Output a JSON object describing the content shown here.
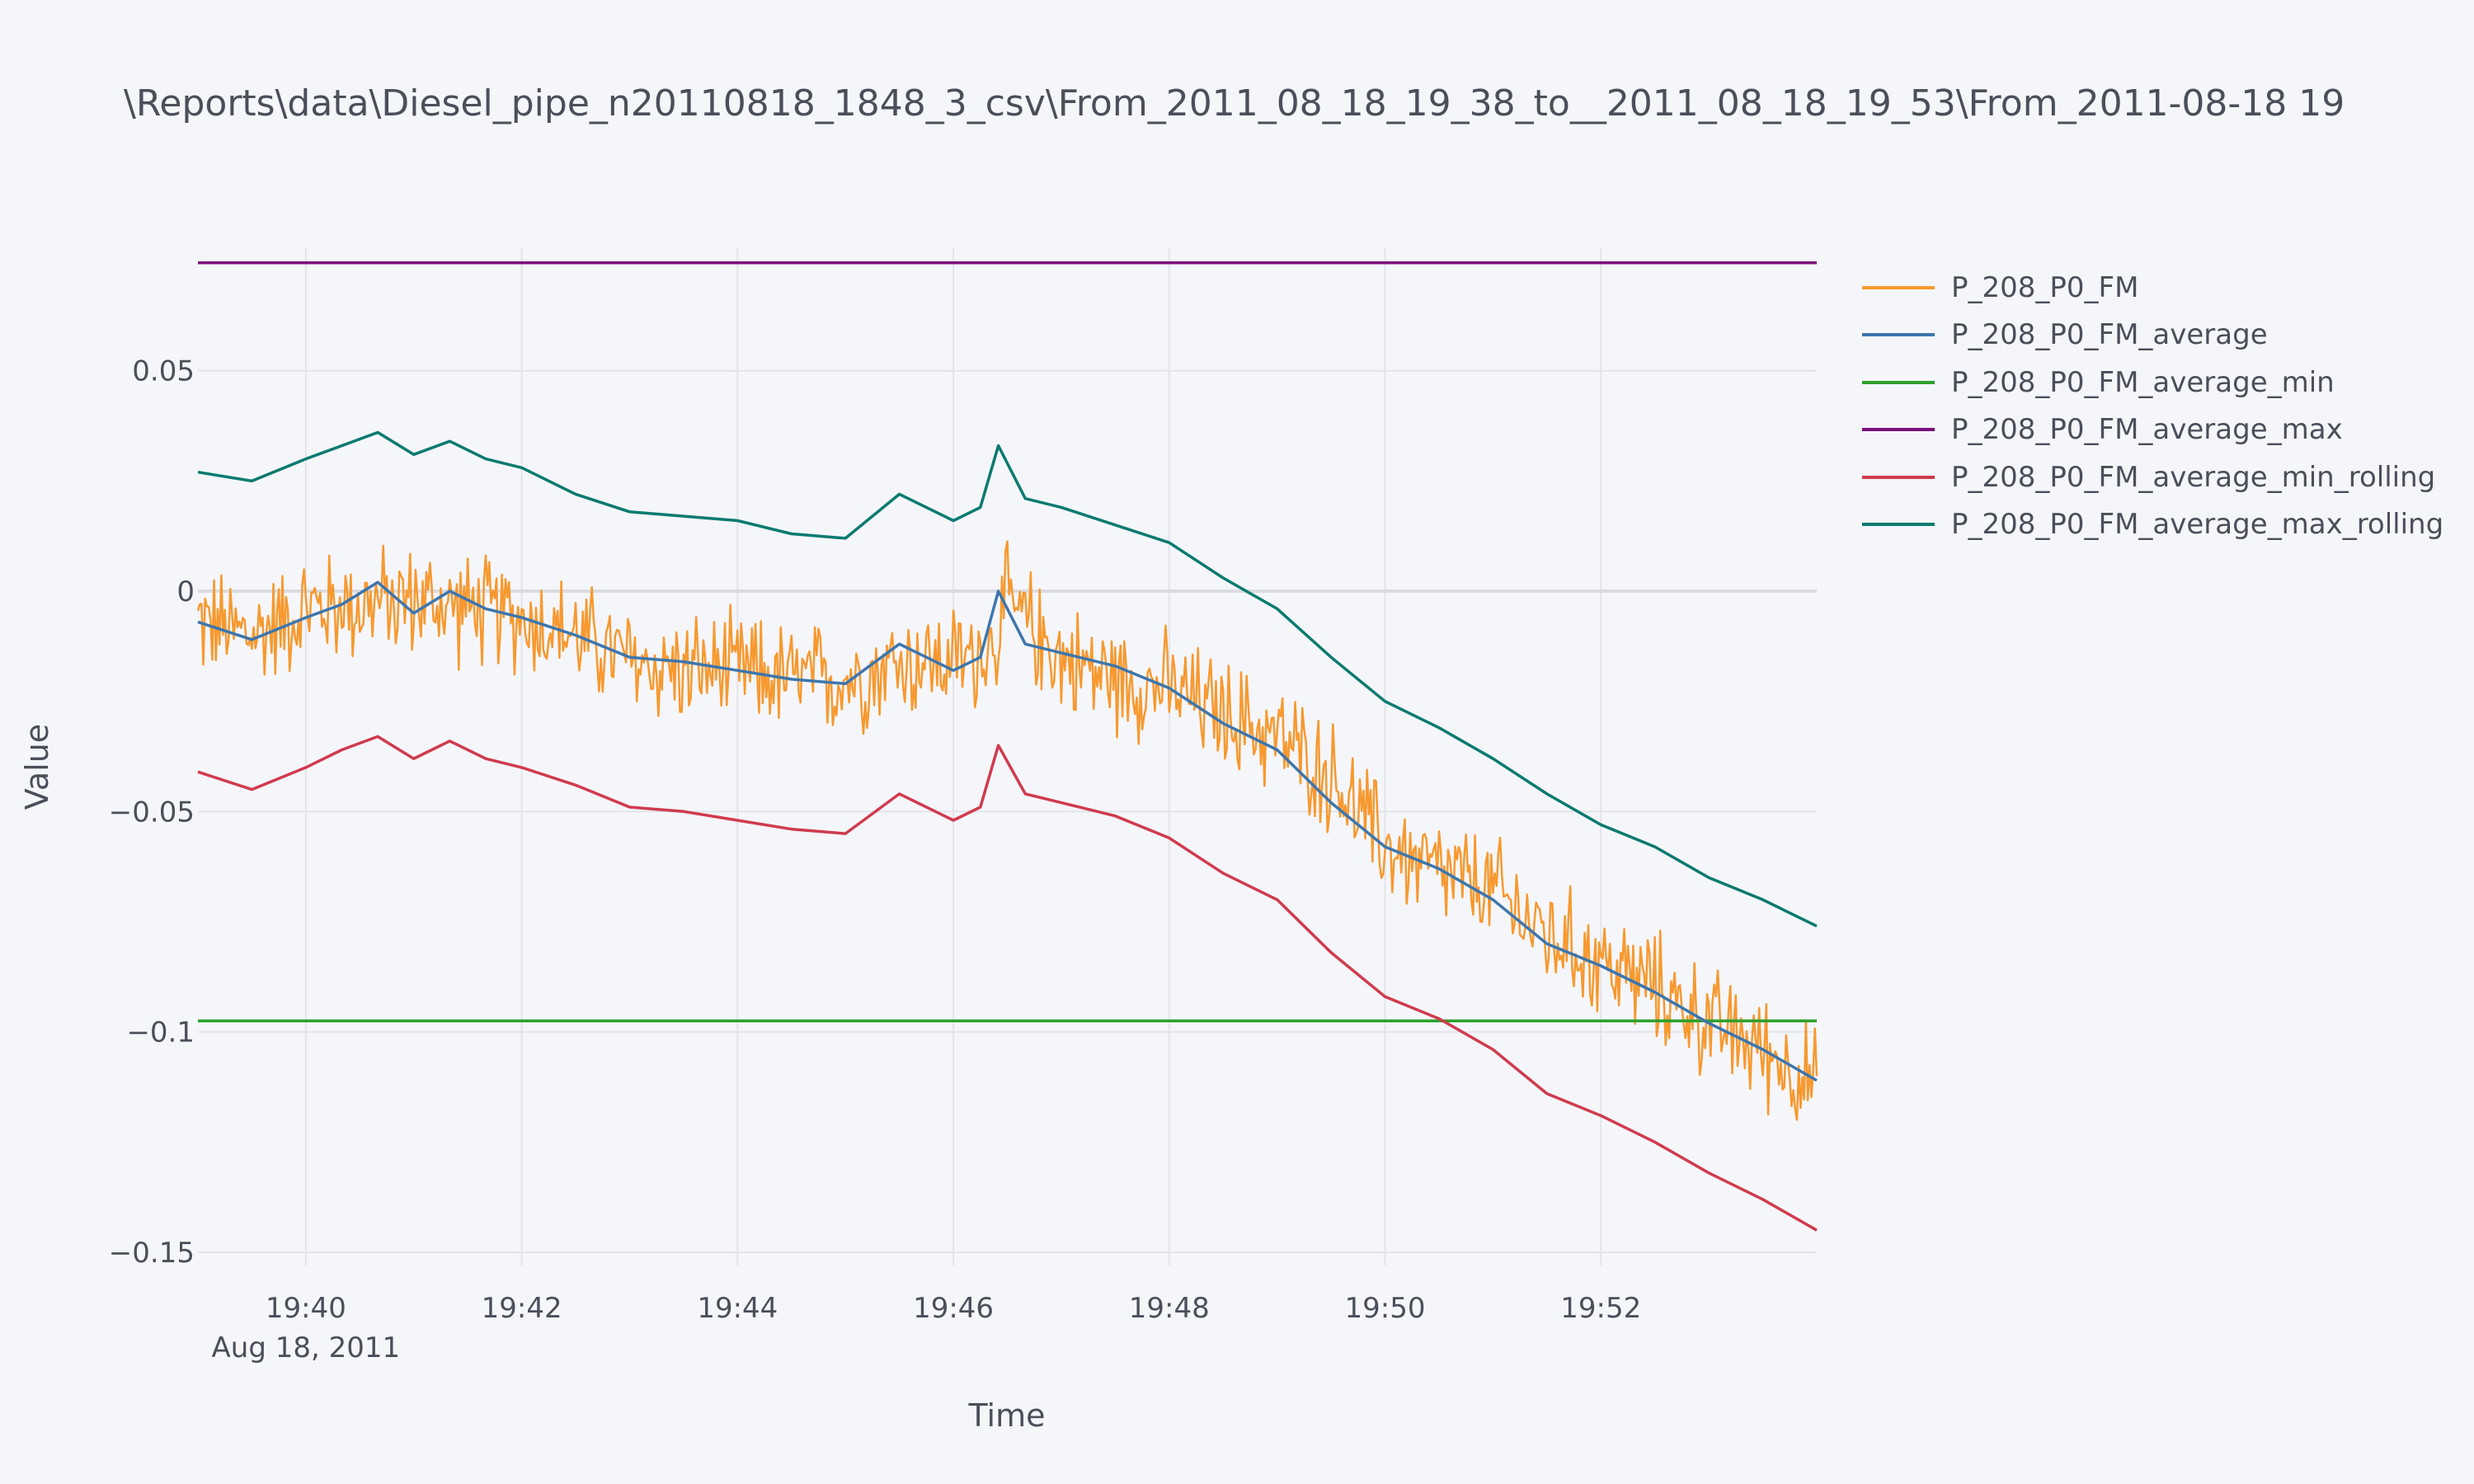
{
  "chart_data": {
    "type": "line",
    "title": "\\Reports\\data\\Diesel_pipe_n20110818_1848_3_csv\\From_2011_08_18_19_38_to__2011_08_18_19_53\\From_2011-08-18 19",
    "xlabel": "Time",
    "ylabel": "Value",
    "x_range": [
      "2011-08-18 19:39:00",
      "2011-08-18 19:54:00"
    ],
    "ylim": [
      -0.153,
      0.078
    ],
    "x_tick_labels": [
      "19:40",
      "19:42",
      "19:44",
      "19:46",
      "19:48",
      "19:50",
      "19:52"
    ],
    "x_tick_sublabel": "Aug 18, 2011",
    "y_tick_labels": [
      "0.05",
      "0",
      "−0.05",
      "−0.1",
      "−0.15"
    ],
    "y_tick_values": [
      0.05,
      0,
      -0.05,
      -0.1,
      -0.15
    ],
    "grid": true,
    "legend_position": "top-right",
    "series": [
      {
        "name": "P_208_P0_FM",
        "color": "#f7992f",
        "noise": 0.012,
        "x": [
          "19:39:00",
          "19:39:30",
          "19:40:00",
          "19:40:30",
          "19:41:00",
          "19:41:30",
          "19:42:00",
          "19:42:30",
          "19:43:00",
          "19:43:30",
          "19:44:00",
          "19:44:30",
          "19:45:00",
          "19:45:30",
          "19:46:00",
          "19:46:20",
          "19:46:30",
          "19:47:00",
          "19:47:30",
          "19:48:00",
          "19:48:30",
          "19:49:00",
          "19:49:30",
          "19:50:00",
          "19:50:30",
          "19:51:00",
          "19:51:30",
          "19:52:00",
          "19:52:30",
          "19:53:00",
          "19:53:30",
          "19:54:00"
        ],
        "y": [
          -0.007,
          -0.01,
          -0.004,
          -0.003,
          -0.002,
          -0.004,
          -0.006,
          -0.01,
          -0.016,
          -0.018,
          -0.018,
          -0.02,
          -0.02,
          -0.016,
          -0.016,
          -0.013,
          -0.003,
          -0.015,
          -0.02,
          -0.022,
          -0.028,
          -0.033,
          -0.042,
          -0.058,
          -0.064,
          -0.068,
          -0.078,
          -0.084,
          -0.09,
          -0.098,
          -0.104,
          -0.112
        ]
      },
      {
        "name": "P_208_P0_FM_average",
        "color": "#3d76ad",
        "x": [
          "19:39:00",
          "19:39:30",
          "19:40:00",
          "19:40:20",
          "19:40:40",
          "19:41:00",
          "19:41:20",
          "19:41:40",
          "19:42:00",
          "19:42:30",
          "19:43:00",
          "19:43:30",
          "19:44:00",
          "19:44:30",
          "19:45:00",
          "19:45:30",
          "19:46:00",
          "19:46:15",
          "19:46:25",
          "19:46:40",
          "19:47:00",
          "19:47:30",
          "19:48:00",
          "19:48:30",
          "19:49:00",
          "19:49:30",
          "19:50:00",
          "19:50:30",
          "19:51:00",
          "19:51:30",
          "19:52:00",
          "19:52:30",
          "19:53:00",
          "19:53:30",
          "19:54:00"
        ],
        "y": [
          -0.007,
          -0.011,
          -0.006,
          -0.003,
          0.002,
          -0.005,
          0.0,
          -0.004,
          -0.006,
          -0.01,
          -0.015,
          -0.016,
          -0.018,
          -0.02,
          -0.021,
          -0.012,
          -0.018,
          -0.015,
          0.0,
          -0.012,
          -0.014,
          -0.017,
          -0.022,
          -0.03,
          -0.036,
          -0.048,
          -0.058,
          -0.063,
          -0.07,
          -0.08,
          -0.085,
          -0.091,
          -0.098,
          -0.104,
          -0.111
        ]
      },
      {
        "name": "P_208_P0_FM_average_min",
        "color": "#2ca02c",
        "x": [
          "19:39:00",
          "19:54:00"
        ],
        "y": [
          -0.0975,
          -0.0975
        ]
      },
      {
        "name": "P_208_P0_FM_average_max",
        "color": "#7a0f7a",
        "x": [
          "19:39:00",
          "19:54:00"
        ],
        "y": [
          0.0745,
          0.0745
        ]
      },
      {
        "name": "P_208_P0_FM_average_min_rolling",
        "color": "#d03b4e",
        "x": [
          "19:39:00",
          "19:39:30",
          "19:40:00",
          "19:40:20",
          "19:40:40",
          "19:41:00",
          "19:41:20",
          "19:41:40",
          "19:42:00",
          "19:42:30",
          "19:43:00",
          "19:43:30",
          "19:44:00",
          "19:44:30",
          "19:45:00",
          "19:45:30",
          "19:46:00",
          "19:46:15",
          "19:46:25",
          "19:46:40",
          "19:47:00",
          "19:47:30",
          "19:48:00",
          "19:48:30",
          "19:49:00",
          "19:49:30",
          "19:50:00",
          "19:50:30",
          "19:51:00",
          "19:51:30",
          "19:52:00",
          "19:52:30",
          "19:53:00",
          "19:53:30",
          "19:54:00"
        ],
        "y": [
          -0.041,
          -0.045,
          -0.04,
          -0.036,
          -0.033,
          -0.038,
          -0.034,
          -0.038,
          -0.04,
          -0.044,
          -0.049,
          -0.05,
          -0.052,
          -0.054,
          -0.055,
          -0.046,
          -0.052,
          -0.049,
          -0.035,
          -0.046,
          -0.048,
          -0.051,
          -0.056,
          -0.064,
          -0.07,
          -0.082,
          -0.092,
          -0.097,
          -0.104,
          -0.114,
          -0.119,
          -0.125,
          -0.132,
          -0.138,
          -0.145
        ]
      },
      {
        "name": "P_208_P0_FM_average_max_rolling",
        "color": "#0a7a6f",
        "x": [
          "19:39:00",
          "19:39:30",
          "19:40:00",
          "19:40:20",
          "19:40:40",
          "19:41:00",
          "19:41:20",
          "19:41:40",
          "19:42:00",
          "19:42:30",
          "19:43:00",
          "19:43:30",
          "19:44:00",
          "19:44:30",
          "19:45:00",
          "19:45:30",
          "19:46:00",
          "19:46:15",
          "19:46:25",
          "19:46:40",
          "19:47:00",
          "19:47:30",
          "19:48:00",
          "19:48:30",
          "19:49:00",
          "19:49:30",
          "19:50:00",
          "19:50:30",
          "19:51:00",
          "19:51:30",
          "19:52:00",
          "19:52:30",
          "19:53:00",
          "19:53:30",
          "19:54:00"
        ],
        "y": [
          0.027,
          0.025,
          0.03,
          0.033,
          0.036,
          0.031,
          0.034,
          0.03,
          0.028,
          0.022,
          0.018,
          0.017,
          0.016,
          0.013,
          0.012,
          0.022,
          0.016,
          0.019,
          0.033,
          0.021,
          0.019,
          0.015,
          0.011,
          0.003,
          -0.004,
          -0.015,
          -0.025,
          -0.031,
          -0.038,
          -0.046,
          -0.053,
          -0.058,
          -0.065,
          -0.07,
          -0.076
        ]
      }
    ]
  }
}
